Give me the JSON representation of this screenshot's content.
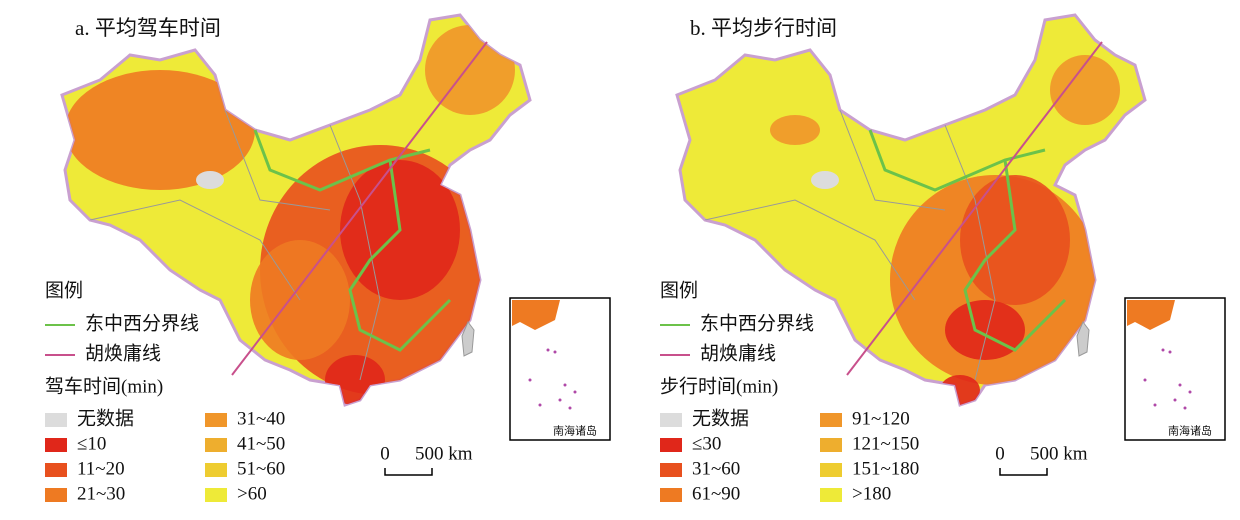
{
  "maps": [
    {
      "title": "a. 平均驾车时间",
      "legend_title": "图例",
      "lines": [
        {
          "label": "东中西分界线",
          "color": "#6cc24a"
        },
        {
          "label": "胡焕庸线",
          "color": "#c8508c"
        }
      ],
      "scale_title": "驾车时间(min)",
      "classes": [
        {
          "label": "无数据",
          "color": "#dcdcdc"
        },
        {
          "label": "≤10",
          "color": "#e0271a"
        },
        {
          "label": "11~20",
          "color": "#e8501e"
        },
        {
          "label": "21~30",
          "color": "#ee7a22"
        },
        {
          "label": "31~40",
          "color": "#f0962a"
        },
        {
          "label": "41~50",
          "color": "#eeae2e"
        },
        {
          "label": "51~60",
          "color": "#eecc30"
        },
        {
          "label": ">60",
          "color": "#eeea38"
        }
      ],
      "scale_bar": {
        "zero": "0",
        "label": "500 km"
      },
      "inset_label": "南海诸岛"
    },
    {
      "title": "b. 平均步行时间",
      "legend_title": "图例",
      "lines": [
        {
          "label": "东中西分界线",
          "color": "#6cc24a"
        },
        {
          "label": "胡焕庸线",
          "color": "#c8508c"
        }
      ],
      "scale_title": "步行时间(min)",
      "classes": [
        {
          "label": "无数据",
          "color": "#dcdcdc"
        },
        {
          "label": "≤30",
          "color": "#e0271a"
        },
        {
          "label": "31~60",
          "color": "#e8501e"
        },
        {
          "label": "61~90",
          "color": "#ee7a22"
        },
        {
          "label": "91~120",
          "color": "#f0962a"
        },
        {
          "label": "121~150",
          "color": "#eeae2e"
        },
        {
          "label": "151~180",
          "color": "#eecc30"
        },
        {
          "label": ">180",
          "color": "#eeea38"
        }
      ],
      "scale_bar": {
        "zero": "0",
        "label": "500 km"
      },
      "inset_label": "南海诸岛"
    }
  ]
}
